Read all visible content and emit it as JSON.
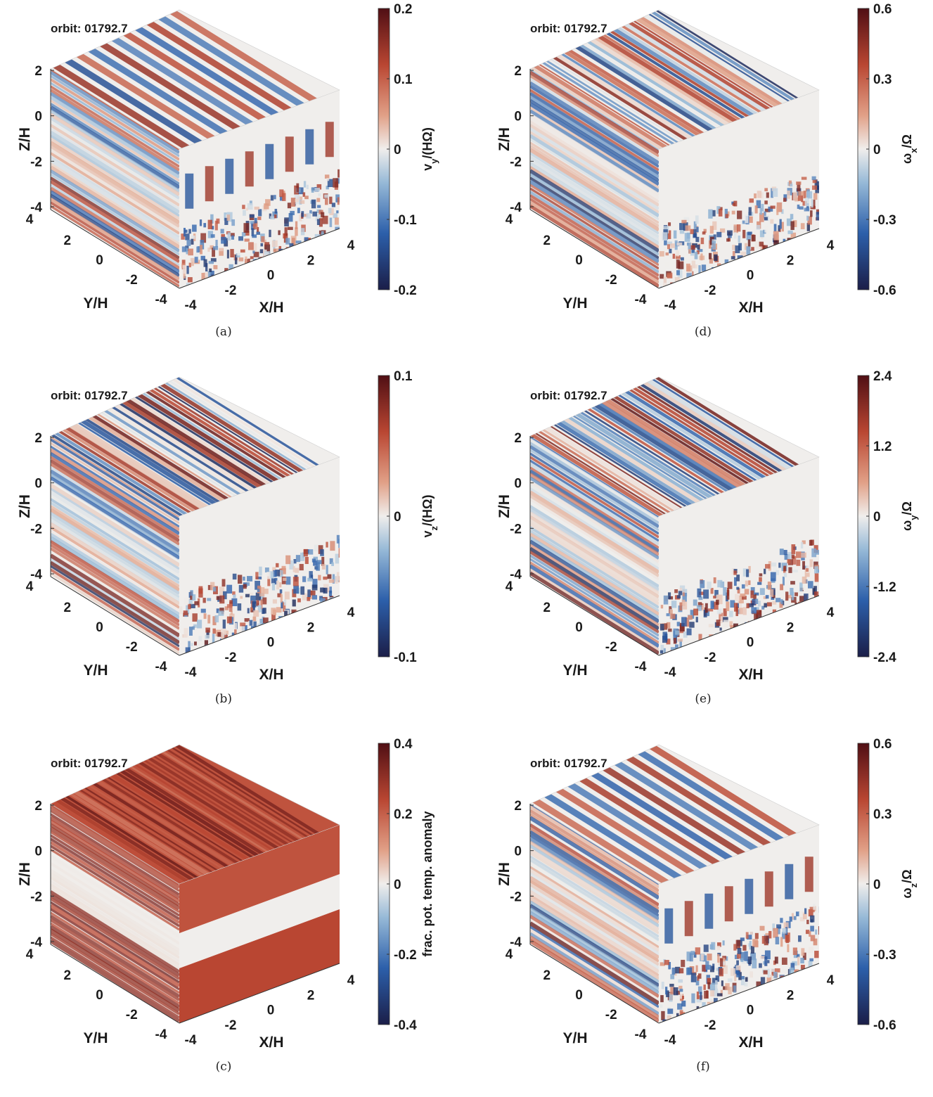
{
  "figure": {
    "panels": [
      {
        "id": "a",
        "caption": "(a)",
        "orbit_text": "orbit: 01792.7",
        "z_axis": {
          "label": "Z/H",
          "ticks": [
            "2",
            "0",
            "-2",
            "-4"
          ]
        },
        "y_axis": {
          "label": "Y/H",
          "ticks": [
            "4",
            "2",
            "0",
            "-2",
            "-4"
          ]
        },
        "x_axis": {
          "label": "X/H",
          "ticks": [
            "-4",
            "-2",
            "0",
            "2",
            "4"
          ]
        },
        "colorbar": {
          "label": "v_y/(HΩ)",
          "label_main": "v",
          "label_sub": "y",
          "label_rest": "/(HΩ)",
          "min": -0.2,
          "max": 0.2,
          "ticks": [
            "0.2",
            "0.1",
            "0",
            "-0.1",
            "-0.2"
          ]
        },
        "style": "bands"
      },
      {
        "id": "b",
        "caption": "(b)",
        "orbit_text": "orbit: 01792.7",
        "z_axis": {
          "label": "Z/H",
          "ticks": [
            "2",
            "0",
            "-2",
            "-4"
          ]
        },
        "y_axis": {
          "label": "Y/H",
          "ticks": [
            "4",
            "2",
            "0",
            "-2",
            "-4"
          ]
        },
        "x_axis": {
          "label": "X/H",
          "ticks": [
            "-4",
            "-2",
            "0",
            "2",
            "4"
          ]
        },
        "colorbar": {
          "label": "v_z/(HΩ)",
          "label_main": "v",
          "label_sub": "z",
          "label_rest": "/(HΩ)",
          "min": -0.1,
          "max": 0.1,
          "ticks": [
            "0.1",
            "0",
            "-0.1"
          ]
        },
        "style": "streaks"
      },
      {
        "id": "c",
        "caption": "(c)",
        "orbit_text": "orbit: 01792.7",
        "z_axis": {
          "label": "Z/H",
          "ticks": [
            "2",
            "0",
            "-2",
            "-4"
          ]
        },
        "y_axis": {
          "label": "Y/H",
          "ticks": [
            "4",
            "2",
            "0",
            "-2",
            "-4"
          ]
        },
        "x_axis": {
          "label": "X/H",
          "ticks": [
            "-4",
            "-2",
            "0",
            "2",
            "4"
          ]
        },
        "colorbar": {
          "label": "frac. pot. temp. anomaly",
          "label_main": "frac. pot. temp. anomaly",
          "label_sub": "",
          "label_rest": "",
          "min": -0.4,
          "max": 0.4,
          "ticks": [
            "0.4",
            "0.2",
            "0",
            "-0.2",
            "-0.4"
          ]
        },
        "style": "warm"
      },
      {
        "id": "d",
        "caption": "(d)",
        "orbit_text": "orbit: 01792.7",
        "z_axis": {
          "label": "Z/H",
          "ticks": [
            "2",
            "0",
            "-2",
            "-4"
          ]
        },
        "y_axis": {
          "label": "Y/H",
          "ticks": [
            "4",
            "2",
            "0",
            "-2",
            "-4"
          ]
        },
        "x_axis": {
          "label": "X/H",
          "ticks": [
            "-4",
            "-2",
            "0",
            "2",
            "4"
          ]
        },
        "colorbar": {
          "label": "ω_x/Ω",
          "label_main": "ω",
          "label_sub": "x",
          "label_rest": "/Ω",
          "min": -0.6,
          "max": 0.6,
          "ticks": [
            "0.6",
            "0.3",
            "0",
            "-0.3",
            "-0.6"
          ]
        },
        "style": "streaks"
      },
      {
        "id": "e",
        "caption": "(e)",
        "orbit_text": "orbit: 01792.7",
        "z_axis": {
          "label": "Z/H",
          "ticks": [
            "2",
            "0",
            "-2",
            "-4"
          ]
        },
        "y_axis": {
          "label": "Y/H",
          "ticks": [
            "4",
            "2",
            "0",
            "-2",
            "-4"
          ]
        },
        "x_axis": {
          "label": "X/H",
          "ticks": [
            "-4",
            "-2",
            "0",
            "2",
            "4"
          ]
        },
        "colorbar": {
          "label": "ω_y/Ω",
          "label_main": "ω",
          "label_sub": "y",
          "label_rest": "/Ω",
          "min": -2.4,
          "max": 2.4,
          "ticks": [
            "2.4",
            "1.2",
            "0",
            "-1.2",
            "-2.4"
          ]
        },
        "style": "streaks"
      },
      {
        "id": "f",
        "caption": "(f)",
        "orbit_text": "orbit: 01792.7",
        "z_axis": {
          "label": "Z/H",
          "ticks": [
            "2",
            "0",
            "-2",
            "-4"
          ]
        },
        "y_axis": {
          "label": "Y/H",
          "ticks": [
            "4",
            "2",
            "0",
            "-2",
            "-4"
          ]
        },
        "x_axis": {
          "label": "X/H",
          "ticks": [
            "-4",
            "-2",
            "0",
            "2",
            "4"
          ]
        },
        "colorbar": {
          "label": "ω_z/Ω",
          "label_main": "ω",
          "label_sub": "z",
          "label_rest": "/Ω",
          "min": -0.6,
          "max": 0.6,
          "ticks": [
            "0.6",
            "0.3",
            "0",
            "-0.3",
            "-0.6"
          ]
        },
        "style": "bands"
      }
    ]
  }
}
